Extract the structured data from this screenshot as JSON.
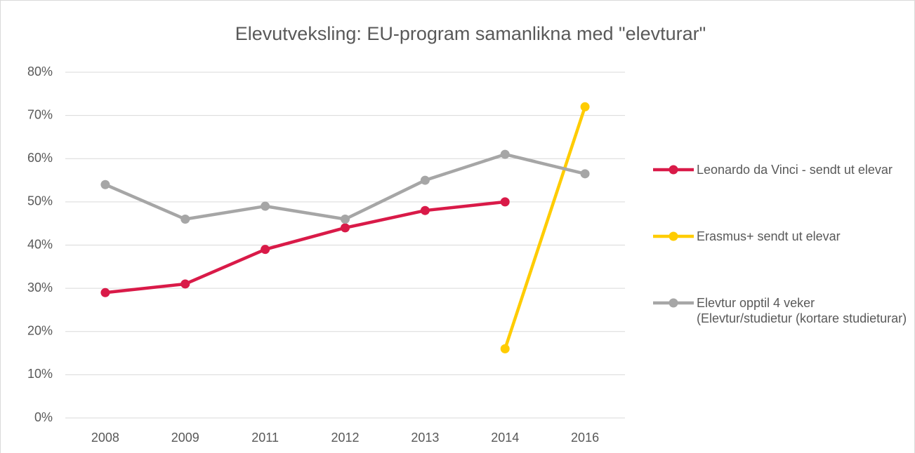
{
  "chart_data": {
    "type": "line",
    "title": "Elevutveksling: EU-program samanlikna med \"elevturar\"",
    "categories": [
      "2008",
      "2009",
      "2011",
      "2012",
      "2013",
      "2014",
      "2016"
    ],
    "series": [
      {
        "name": "Leonardo da Vinci - sendt ut elevar",
        "color": "#d91a48",
        "values": [
          29,
          31,
          39,
          44,
          48,
          50,
          null
        ]
      },
      {
        "name": "Erasmus+ sendt ut elevar",
        "color": "#ffcc00",
        "values": [
          null,
          null,
          null,
          null,
          null,
          16,
          72
        ]
      },
      {
        "name": "Elevtur opptil 4 veker (Elevtur/studietur (kortare studieturar)",
        "color": "#a6a6a6",
        "values": [
          54,
          46,
          49,
          46,
          55,
          61,
          56.5
        ]
      }
    ],
    "ylim": [
      0,
      80
    ],
    "yticks": [
      {
        "value": 0,
        "label": "0%"
      },
      {
        "value": 10,
        "label": "10%"
      },
      {
        "value": 20,
        "label": "20%"
      },
      {
        "value": 30,
        "label": "30%"
      },
      {
        "value": 40,
        "label": "40%"
      },
      {
        "value": 50,
        "label": "50%"
      },
      {
        "value": 60,
        "label": "60%"
      },
      {
        "value": 70,
        "label": "70%"
      },
      {
        "value": 80,
        "label": "80%"
      }
    ],
    "grid": true,
    "legend": "right"
  }
}
